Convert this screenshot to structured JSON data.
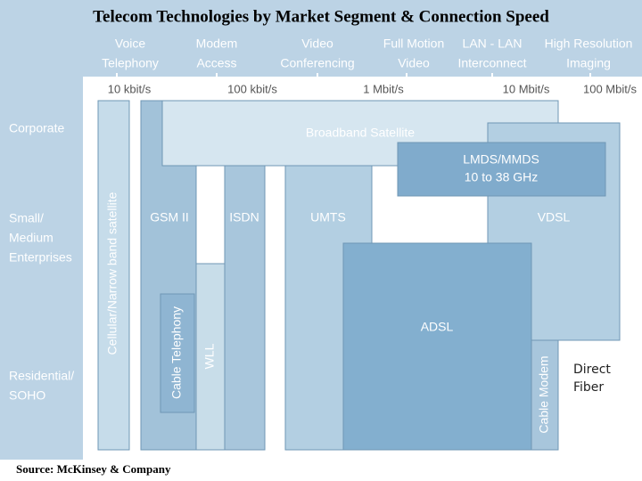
{
  "title": "Telecom Technologies by Market Segment & Connection Speed",
  "applications": [
    [
      "Voice",
      "Telephony"
    ],
    [
      "Modem",
      "Access"
    ],
    [
      "Video",
      "Conferencing"
    ],
    [
      "Full Motion",
      "Video"
    ],
    [
      "LAN - LAN",
      "Interconnect"
    ],
    [
      "High Resolution",
      "Imaging"
    ]
  ],
  "speeds": [
    "10 kbit/s",
    "100 kbit/s",
    "1 Mbit/s",
    "10 Mbit/s",
    "100 Mbit/s"
  ],
  "segments": [
    [
      "Corporate"
    ],
    [
      "Small/",
      "Medium",
      "Enterprises"
    ],
    [
      "Residential/",
      "SOHO"
    ]
  ],
  "technologies": [
    {
      "label": [
        "Cellular/Narrow band satellite"
      ]
    },
    {
      "label": [
        "GSM II"
      ]
    },
    {
      "label": [
        "Broadband Satellite"
      ]
    },
    {
      "label": [
        "VDSL"
      ]
    },
    {
      "label": [
        "LMDS/MMDS",
        "10 to 38 GHz"
      ]
    },
    {
      "label": [
        "ISDN"
      ]
    },
    {
      "label": [
        "WLL"
      ]
    },
    {
      "label": [
        "Cable Telephony"
      ]
    },
    {
      "label": [
        "UMTS"
      ]
    },
    {
      "label": [
        "ADSL"
      ]
    },
    {
      "label": [
        "Cable Modem"
      ]
    },
    {
      "label": [
        "Direct",
        "Fiber"
      ]
    }
  ],
  "source": "Source: McKinsey & Company"
}
